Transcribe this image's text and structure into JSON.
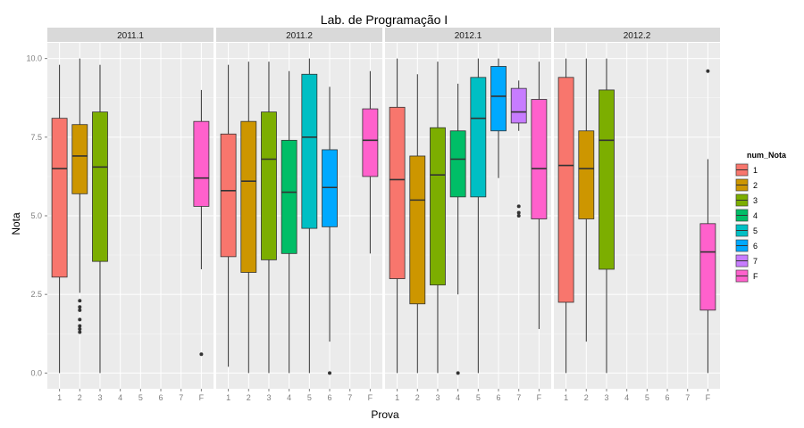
{
  "chart_data": {
    "type": "boxplot",
    "title": "Lab. de Programação I",
    "xlabel": "Prova",
    "ylabel": "Nota",
    "ylim": [
      -0.5,
      10.5
    ],
    "y_ticks": [
      "0.0",
      "2.5",
      "5.0",
      "7.5",
      "10.0"
    ],
    "y_tick_values": [
      0,
      2.5,
      5,
      7.5,
      10
    ],
    "categories": [
      "1",
      "2",
      "3",
      "4",
      "5",
      "6",
      "7",
      "F"
    ],
    "grid": true,
    "legend": {
      "title": "num_Nota",
      "placement": "right",
      "entries": [
        {
          "label": "1",
          "color": "#F8766D"
        },
        {
          "label": "2",
          "color": "#CD9600"
        },
        {
          "label": "3",
          "color": "#7CAE00"
        },
        {
          "label": "4",
          "color": "#00BE67"
        },
        {
          "label": "5",
          "color": "#00BFC4"
        },
        {
          "label": "6",
          "color": "#00A9FF"
        },
        {
          "label": "7",
          "color": "#C77CFF"
        },
        {
          "label": "F",
          "color": "#FF61CC"
        }
      ]
    },
    "panels": [
      {
        "label": "2011.1",
        "boxes": [
          {
            "category": "1",
            "min": 0,
            "q1": 3.05,
            "median": 6.5,
            "q3": 8.1,
            "max": 9.8,
            "outliers": []
          },
          {
            "category": "2",
            "min": 2.55,
            "q1": 5.7,
            "median": 6.9,
            "q3": 7.9,
            "max": 10,
            "outliers": [
              2.3,
              2.1,
              2.0,
              1.7,
              1.5,
              1.4,
              1.3
            ]
          },
          {
            "category": "3",
            "min": 0,
            "q1": 3.55,
            "median": 6.55,
            "q3": 8.3,
            "max": 9.8,
            "outliers": []
          },
          {
            "category": "F",
            "min": 3.3,
            "q1": 5.3,
            "median": 6.2,
            "q3": 8.0,
            "max": 9.0,
            "outliers": [
              0.6
            ]
          }
        ]
      },
      {
        "label": "2011.2",
        "boxes": [
          {
            "category": "1",
            "min": 0.2,
            "q1": 3.7,
            "median": 5.8,
            "q3": 7.6,
            "max": 9.8,
            "outliers": []
          },
          {
            "category": "2",
            "min": 0,
            "q1": 3.2,
            "median": 6.1,
            "q3": 8.0,
            "max": 9.9,
            "outliers": []
          },
          {
            "category": "3",
            "min": 0,
            "q1": 3.6,
            "median": 6.8,
            "q3": 8.3,
            "max": 9.9,
            "outliers": []
          },
          {
            "category": "4",
            "min": 0,
            "q1": 3.8,
            "median": 5.75,
            "q3": 7.4,
            "max": 9.6,
            "outliers": []
          },
          {
            "category": "5",
            "min": 0,
            "q1": 4.6,
            "median": 7.5,
            "q3": 9.5,
            "max": 10,
            "outliers": []
          },
          {
            "category": "6",
            "min": 1.0,
            "q1": 4.65,
            "median": 5.9,
            "q3": 7.1,
            "max": 9.1,
            "outliers": [
              0
            ]
          },
          {
            "category": "F",
            "min": 3.8,
            "q1": 6.25,
            "median": 7.4,
            "q3": 8.4,
            "max": 9.6,
            "outliers": []
          }
        ]
      },
      {
        "label": "2012.1",
        "boxes": [
          {
            "category": "1",
            "min": 0,
            "q1": 3.0,
            "median": 6.15,
            "q3": 8.45,
            "max": 10,
            "outliers": []
          },
          {
            "category": "2",
            "min": 0,
            "q1": 2.2,
            "median": 5.5,
            "q3": 6.9,
            "max": 9.5,
            "outliers": []
          },
          {
            "category": "3",
            "min": 0,
            "q1": 2.8,
            "median": 6.3,
            "q3": 7.8,
            "max": 9.9,
            "outliers": []
          },
          {
            "category": "4",
            "min": 2.5,
            "q1": 5.6,
            "median": 6.8,
            "q3": 7.7,
            "max": 9.2,
            "outliers": [
              0
            ]
          },
          {
            "category": "5",
            "min": 0,
            "q1": 5.6,
            "median": 8.1,
            "q3": 9.4,
            "max": 10,
            "outliers": []
          },
          {
            "category": "6",
            "min": 6.2,
            "q1": 7.7,
            "median": 8.8,
            "q3": 9.75,
            "max": 10,
            "outliers": []
          },
          {
            "category": "7",
            "min": 7.7,
            "q1": 7.95,
            "median": 8.3,
            "q3": 9.05,
            "max": 9.3,
            "outliers": [
              5.3,
              5.1,
              5.0
            ]
          },
          {
            "category": "F",
            "min": 1.4,
            "q1": 4.9,
            "median": 6.5,
            "q3": 8.7,
            "max": 9.9,
            "outliers": []
          }
        ]
      },
      {
        "label": "2012.2",
        "boxes": [
          {
            "category": "1",
            "min": 0,
            "q1": 2.25,
            "median": 6.6,
            "q3": 9.4,
            "max": 10,
            "outliers": []
          },
          {
            "category": "2",
            "min": 1.0,
            "q1": 4.9,
            "median": 6.5,
            "q3": 7.7,
            "max": 10,
            "outliers": []
          },
          {
            "category": "3",
            "min": 0,
            "q1": 3.3,
            "median": 7.4,
            "q3": 9.0,
            "max": 10,
            "outliers": []
          },
          {
            "category": "F",
            "min": 0,
            "q1": 2.0,
            "median": 3.85,
            "q3": 4.75,
            "max": 6.8,
            "outliers": [
              9.6
            ]
          }
        ]
      }
    ]
  }
}
